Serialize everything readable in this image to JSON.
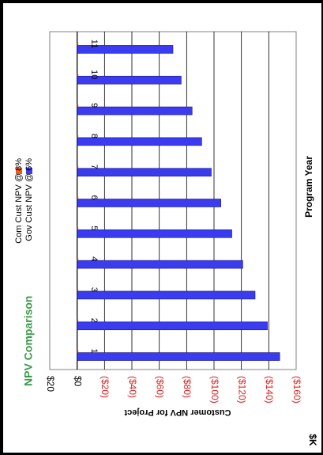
{
  "chart_data": {
    "type": "bar",
    "orientation": "rotated-90",
    "title": "NPV Comparison",
    "xlabel": "Program Year",
    "ylabel": "Customer NPV for Project",
    "ylim": [
      -160,
      20
    ],
    "y_ticks": [
      "$20",
      "$0",
      "($20)",
      "($40)",
      "($60)",
      "($80)",
      "($100)",
      "($120)",
      "($140)",
      "($160)"
    ],
    "y_unit_label": "$K",
    "categories": [
      "1",
      "2",
      "3",
      "4",
      "5",
      "6",
      "7",
      "8",
      "9",
      "10",
      "11"
    ],
    "series": [
      {
        "name": "Com Cust NPV @ 8%",
        "color": "#f05a1e",
        "values": [
          -0.5,
          -0.5,
          -0.5,
          -0.5,
          -0.5,
          -0.5,
          -0.5,
          -0.5,
          -0.5,
          -0.5,
          -0.5
        ]
      },
      {
        "name": "Gov Cust NPV @ 6%",
        "color": "#3b3bf0",
        "values": [
          -148,
          -139,
          -130,
          -121,
          -113,
          -105,
          -98,
          -91,
          -84,
          -76,
          -70
        ]
      }
    ],
    "legend_position": "top-right",
    "grid": true
  },
  "colors": {
    "title": "#3a9a4a",
    "negative_tick": "#e02020",
    "positive_tick": "#000000"
  }
}
